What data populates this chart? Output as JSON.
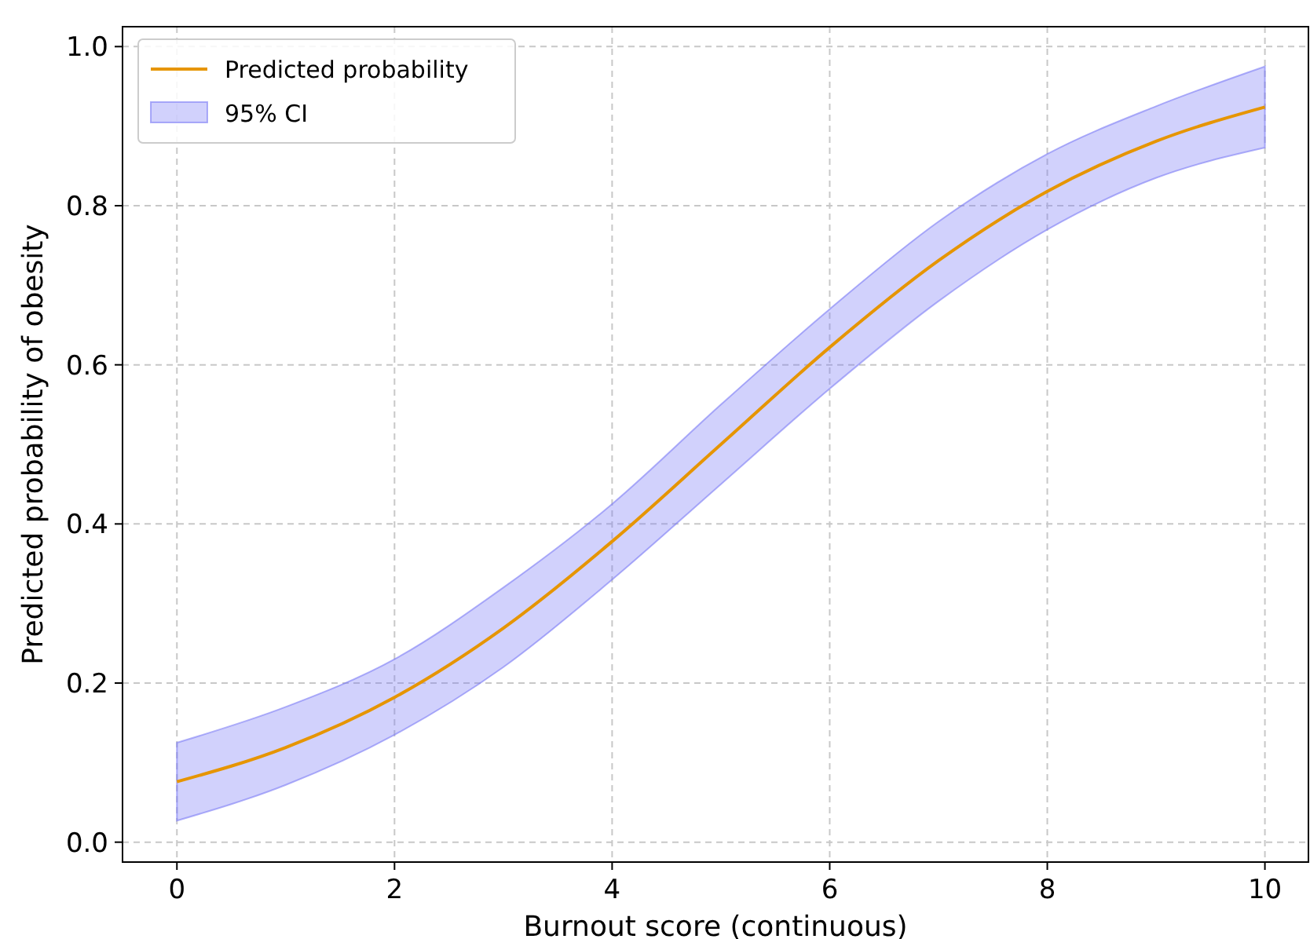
{
  "chart_data": {
    "type": "line",
    "xlabel": "Burnout score (continuous)",
    "ylabel": "Predicted probability of obesity",
    "x": [
      0,
      1,
      2,
      3,
      4,
      5,
      6,
      7,
      8,
      9,
      10
    ],
    "series": [
      {
        "name": "Predicted probability",
        "type": "line",
        "color": "#e69500",
        "values": [
          0.076,
          0.119,
          0.182,
          0.269,
          0.378,
          0.5,
          0.622,
          0.731,
          0.818,
          0.881,
          0.924
        ],
        "lower": [
          0.027,
          0.072,
          0.135,
          0.22,
          0.33,
          0.45,
          0.57,
          0.68,
          0.77,
          0.835,
          0.873
        ],
        "upper": [
          0.125,
          0.17,
          0.23,
          0.32,
          0.425,
          0.55,
          0.67,
          0.78,
          0.865,
          0.925,
          0.975
        ]
      }
    ],
    "annotations": [
      "95% CI"
    ],
    "xlim": [
      -0.5,
      10.4
    ],
    "ylim": [
      -0.025,
      1.025
    ],
    "xticks": [
      0,
      2,
      4,
      6,
      8,
      10
    ],
    "yticks": [
      {
        "value": 0,
        "label": "0.0"
      },
      {
        "value": 0.2,
        "label": "0.2"
      },
      {
        "value": 0.4,
        "label": "0.4"
      },
      {
        "value": 0.6,
        "label": "0.6"
      },
      {
        "value": 0.8,
        "label": "0.8"
      },
      {
        "value": 1,
        "label": "1.0"
      }
    ],
    "grid": true,
    "legend": "top left",
    "line_style": "solid"
  }
}
